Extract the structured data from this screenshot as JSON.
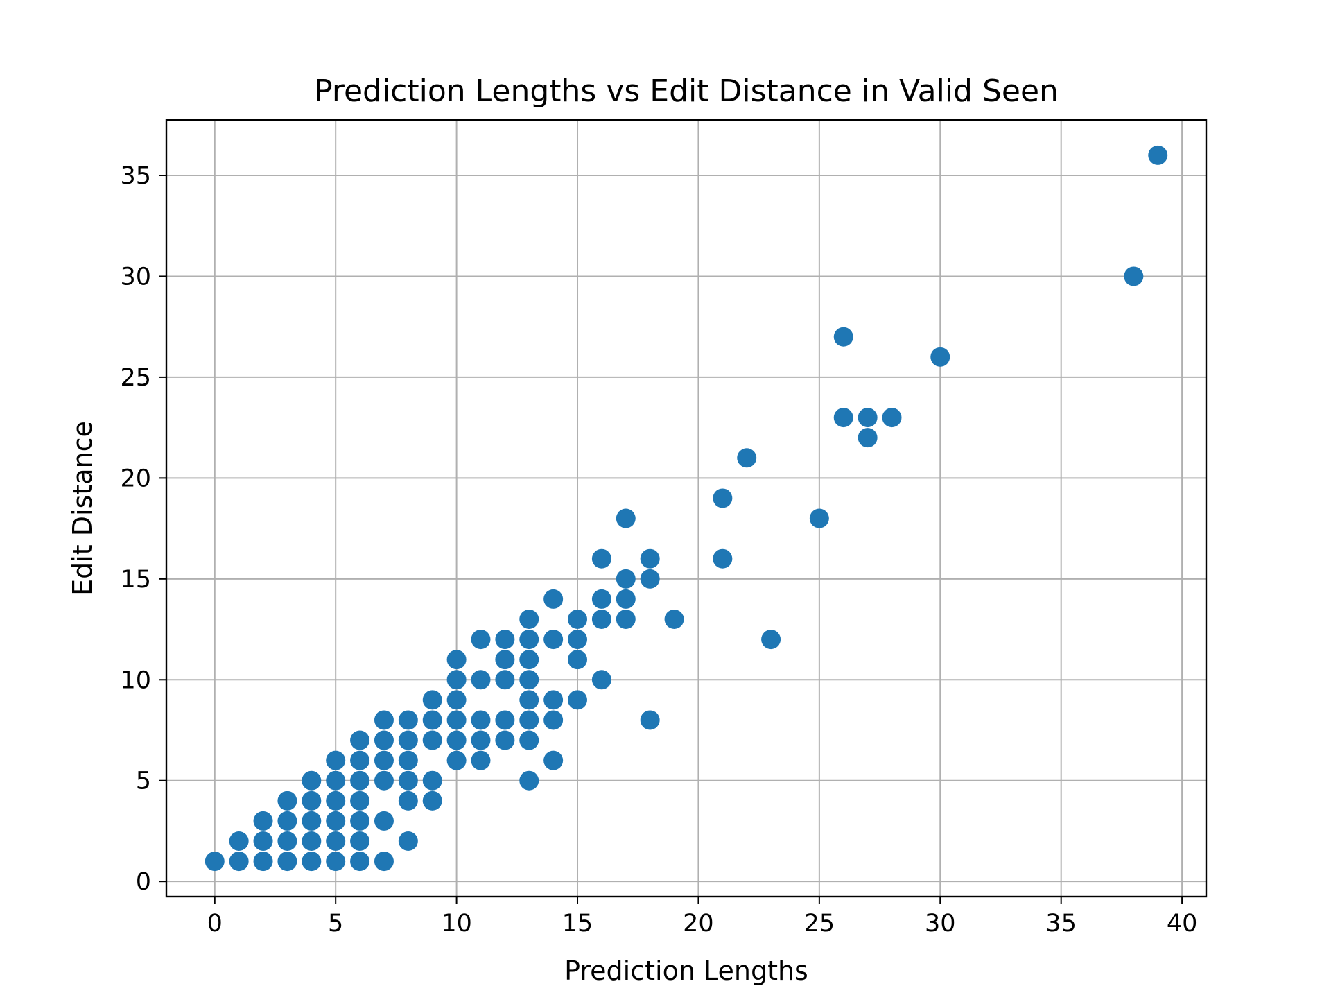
{
  "chart_data": {
    "type": "scatter",
    "title": "Prediction Lengths vs Edit Distance in Valid Seen",
    "xlabel": "Prediction Lengths",
    "ylabel": "Edit Distance",
    "xlim": [
      -2,
      41
    ],
    "ylim": [
      -0.75,
      37.75
    ],
    "xticks": [
      0,
      5,
      10,
      15,
      20,
      25,
      30,
      35,
      40
    ],
    "yticks": [
      0,
      5,
      10,
      15,
      20,
      25,
      30,
      35
    ],
    "grid": true,
    "marker_color": "#1f77b4",
    "points": [
      [
        0,
        1
      ],
      [
        1,
        1
      ],
      [
        1,
        2
      ],
      [
        2,
        1
      ],
      [
        2,
        2
      ],
      [
        2,
        3
      ],
      [
        3,
        1
      ],
      [
        3,
        2
      ],
      [
        3,
        3
      ],
      [
        3,
        4
      ],
      [
        4,
        1
      ],
      [
        4,
        2
      ],
      [
        4,
        3
      ],
      [
        4,
        4
      ],
      [
        4,
        5
      ],
      [
        5,
        1
      ],
      [
        5,
        2
      ],
      [
        5,
        3
      ],
      [
        5,
        4
      ],
      [
        5,
        5
      ],
      [
        5,
        6
      ],
      [
        6,
        1
      ],
      [
        6,
        2
      ],
      [
        6,
        3
      ],
      [
        6,
        4
      ],
      [
        6,
        5
      ],
      [
        6,
        6
      ],
      [
        6,
        7
      ],
      [
        7,
        1
      ],
      [
        7,
        3
      ],
      [
        7,
        5
      ],
      [
        7,
        6
      ],
      [
        7,
        7
      ],
      [
        7,
        8
      ],
      [
        8,
        2
      ],
      [
        8,
        4
      ],
      [
        8,
        5
      ],
      [
        8,
        6
      ],
      [
        8,
        7
      ],
      [
        8,
        8
      ],
      [
        9,
        4
      ],
      [
        9,
        5
      ],
      [
        9,
        7
      ],
      [
        9,
        8
      ],
      [
        9,
        9
      ],
      [
        10,
        6
      ],
      [
        10,
        7
      ],
      [
        10,
        8
      ],
      [
        10,
        9
      ],
      [
        10,
        10
      ],
      [
        10,
        11
      ],
      [
        11,
        6
      ],
      [
        11,
        7
      ],
      [
        11,
        8
      ],
      [
        11,
        10
      ],
      [
        11,
        12
      ],
      [
        12,
        7
      ],
      [
        12,
        8
      ],
      [
        12,
        10
      ],
      [
        12,
        11
      ],
      [
        12,
        12
      ],
      [
        13,
        5
      ],
      [
        13,
        7
      ],
      [
        13,
        8
      ],
      [
        13,
        9
      ],
      [
        13,
        10
      ],
      [
        13,
        11
      ],
      [
        13,
        12
      ],
      [
        13,
        13
      ],
      [
        14,
        6
      ],
      [
        14,
        8
      ],
      [
        14,
        9
      ],
      [
        14,
        12
      ],
      [
        14,
        14
      ],
      [
        15,
        9
      ],
      [
        15,
        11
      ],
      [
        15,
        12
      ],
      [
        15,
        13
      ],
      [
        16,
        10
      ],
      [
        16,
        13
      ],
      [
        16,
        14
      ],
      [
        16,
        16
      ],
      [
        17,
        13
      ],
      [
        17,
        14
      ],
      [
        17,
        15
      ],
      [
        17,
        18
      ],
      [
        18,
        8
      ],
      [
        18,
        15
      ],
      [
        18,
        16
      ],
      [
        19,
        13
      ],
      [
        21,
        16
      ],
      [
        21,
        19
      ],
      [
        22,
        21
      ],
      [
        23,
        12
      ],
      [
        25,
        18
      ],
      [
        26,
        23
      ],
      [
        26,
        27
      ],
      [
        27,
        22
      ],
      [
        27,
        23
      ],
      [
        28,
        23
      ],
      [
        30,
        26
      ],
      [
        38,
        30
      ],
      [
        39,
        36
      ]
    ]
  }
}
